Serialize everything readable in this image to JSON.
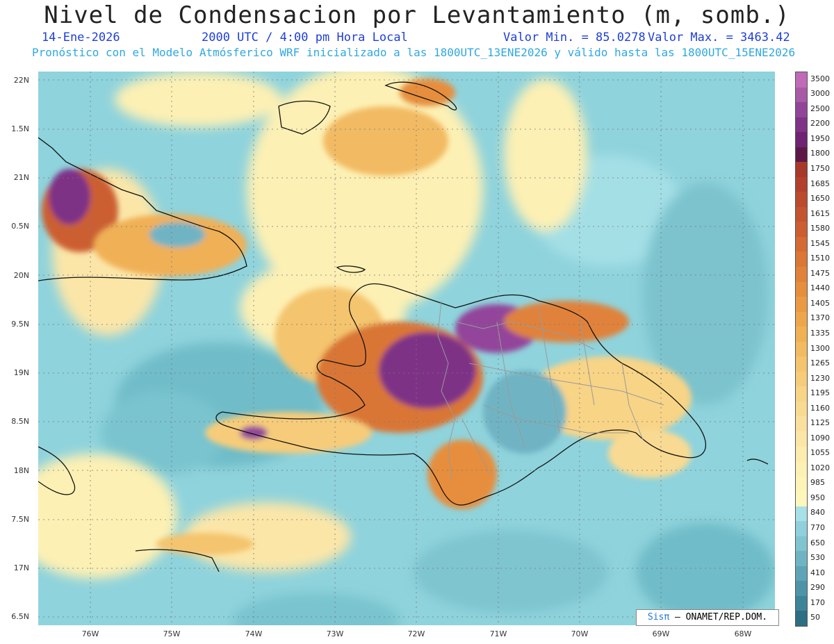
{
  "header": {
    "title": "Nivel de Condensacion por Levantamiento (m, somb.)",
    "date": "14-Ene-2026",
    "time": "2000 UTC / 4:00 pm Hora Local",
    "min_label": "Valor Min. = 85.0278",
    "max_label": "Valor Max. = 3463.42",
    "forecast_line": "Pronóstico con el Modelo Atmósferico WRF inicializado a las 1800UTC_13ENE2026 y válido hasta las  1800UTC_15ENE2026"
  },
  "map": {
    "lat_labels": [
      "22N",
      "1.5N",
      "21N",
      "0.5N",
      "20N",
      "9.5N",
      "19N",
      "8.5N",
      "18N",
      "7.5N",
      "17N",
      "6.5N"
    ],
    "lon_labels": [
      "76W",
      "75W",
      "74W",
      "73W",
      "72W",
      "71W",
      "70W",
      "69W",
      "68W"
    ],
    "lat_range": [
      16.45,
      22.1
    ],
    "lon_range": [
      -76.65,
      -67.6
    ],
    "ocean_color": "#8fd3dc",
    "coastline_color": "#111111",
    "border_color": "#9a9a9a"
  },
  "legend": {
    "levels": [
      "3500",
      "3000",
      "2500",
      "2200",
      "1950",
      "1800",
      "1750",
      "1685",
      "1650",
      "1615",
      "1580",
      "1545",
      "1510",
      "1475",
      "1440",
      "1405",
      "1370",
      "1335",
      "1300",
      "1265",
      "1230",
      "1195",
      "1160",
      "1125",
      "1090",
      "1055",
      "1020",
      "985",
      "950",
      "840",
      "770",
      "650",
      "530",
      "410",
      "290",
      "170",
      "50"
    ],
    "colors": [
      "#c06ab8",
      "#a85aa6",
      "#92449a",
      "#7e3386",
      "#6e2472",
      "#5e1848",
      "#a8382a",
      "#b2402c",
      "#bc4a2e",
      "#c45430",
      "#cc5e32",
      "#d46a34",
      "#da7636",
      "#e0823a",
      "#e68e3e",
      "#ea9a44",
      "#eea64c",
      "#f0b056",
      "#f2ba62",
      "#f4c46e",
      "#f6cc7a",
      "#f8d486",
      "#f9da92",
      "#fae09e",
      "#fbe6a8",
      "#fcecae",
      "#fdf0b4",
      "#fef4b8",
      "#fef7bc",
      "#a8e0e8",
      "#90d0dc",
      "#80c4d0",
      "#70b4c4",
      "#5ea4b6",
      "#4e94a8",
      "#3e8498",
      "#2e6e84"
    ]
  },
  "credit": {
    "sis": "Sisπ",
    "org": "– ONAMET/REP.DOM."
  }
}
